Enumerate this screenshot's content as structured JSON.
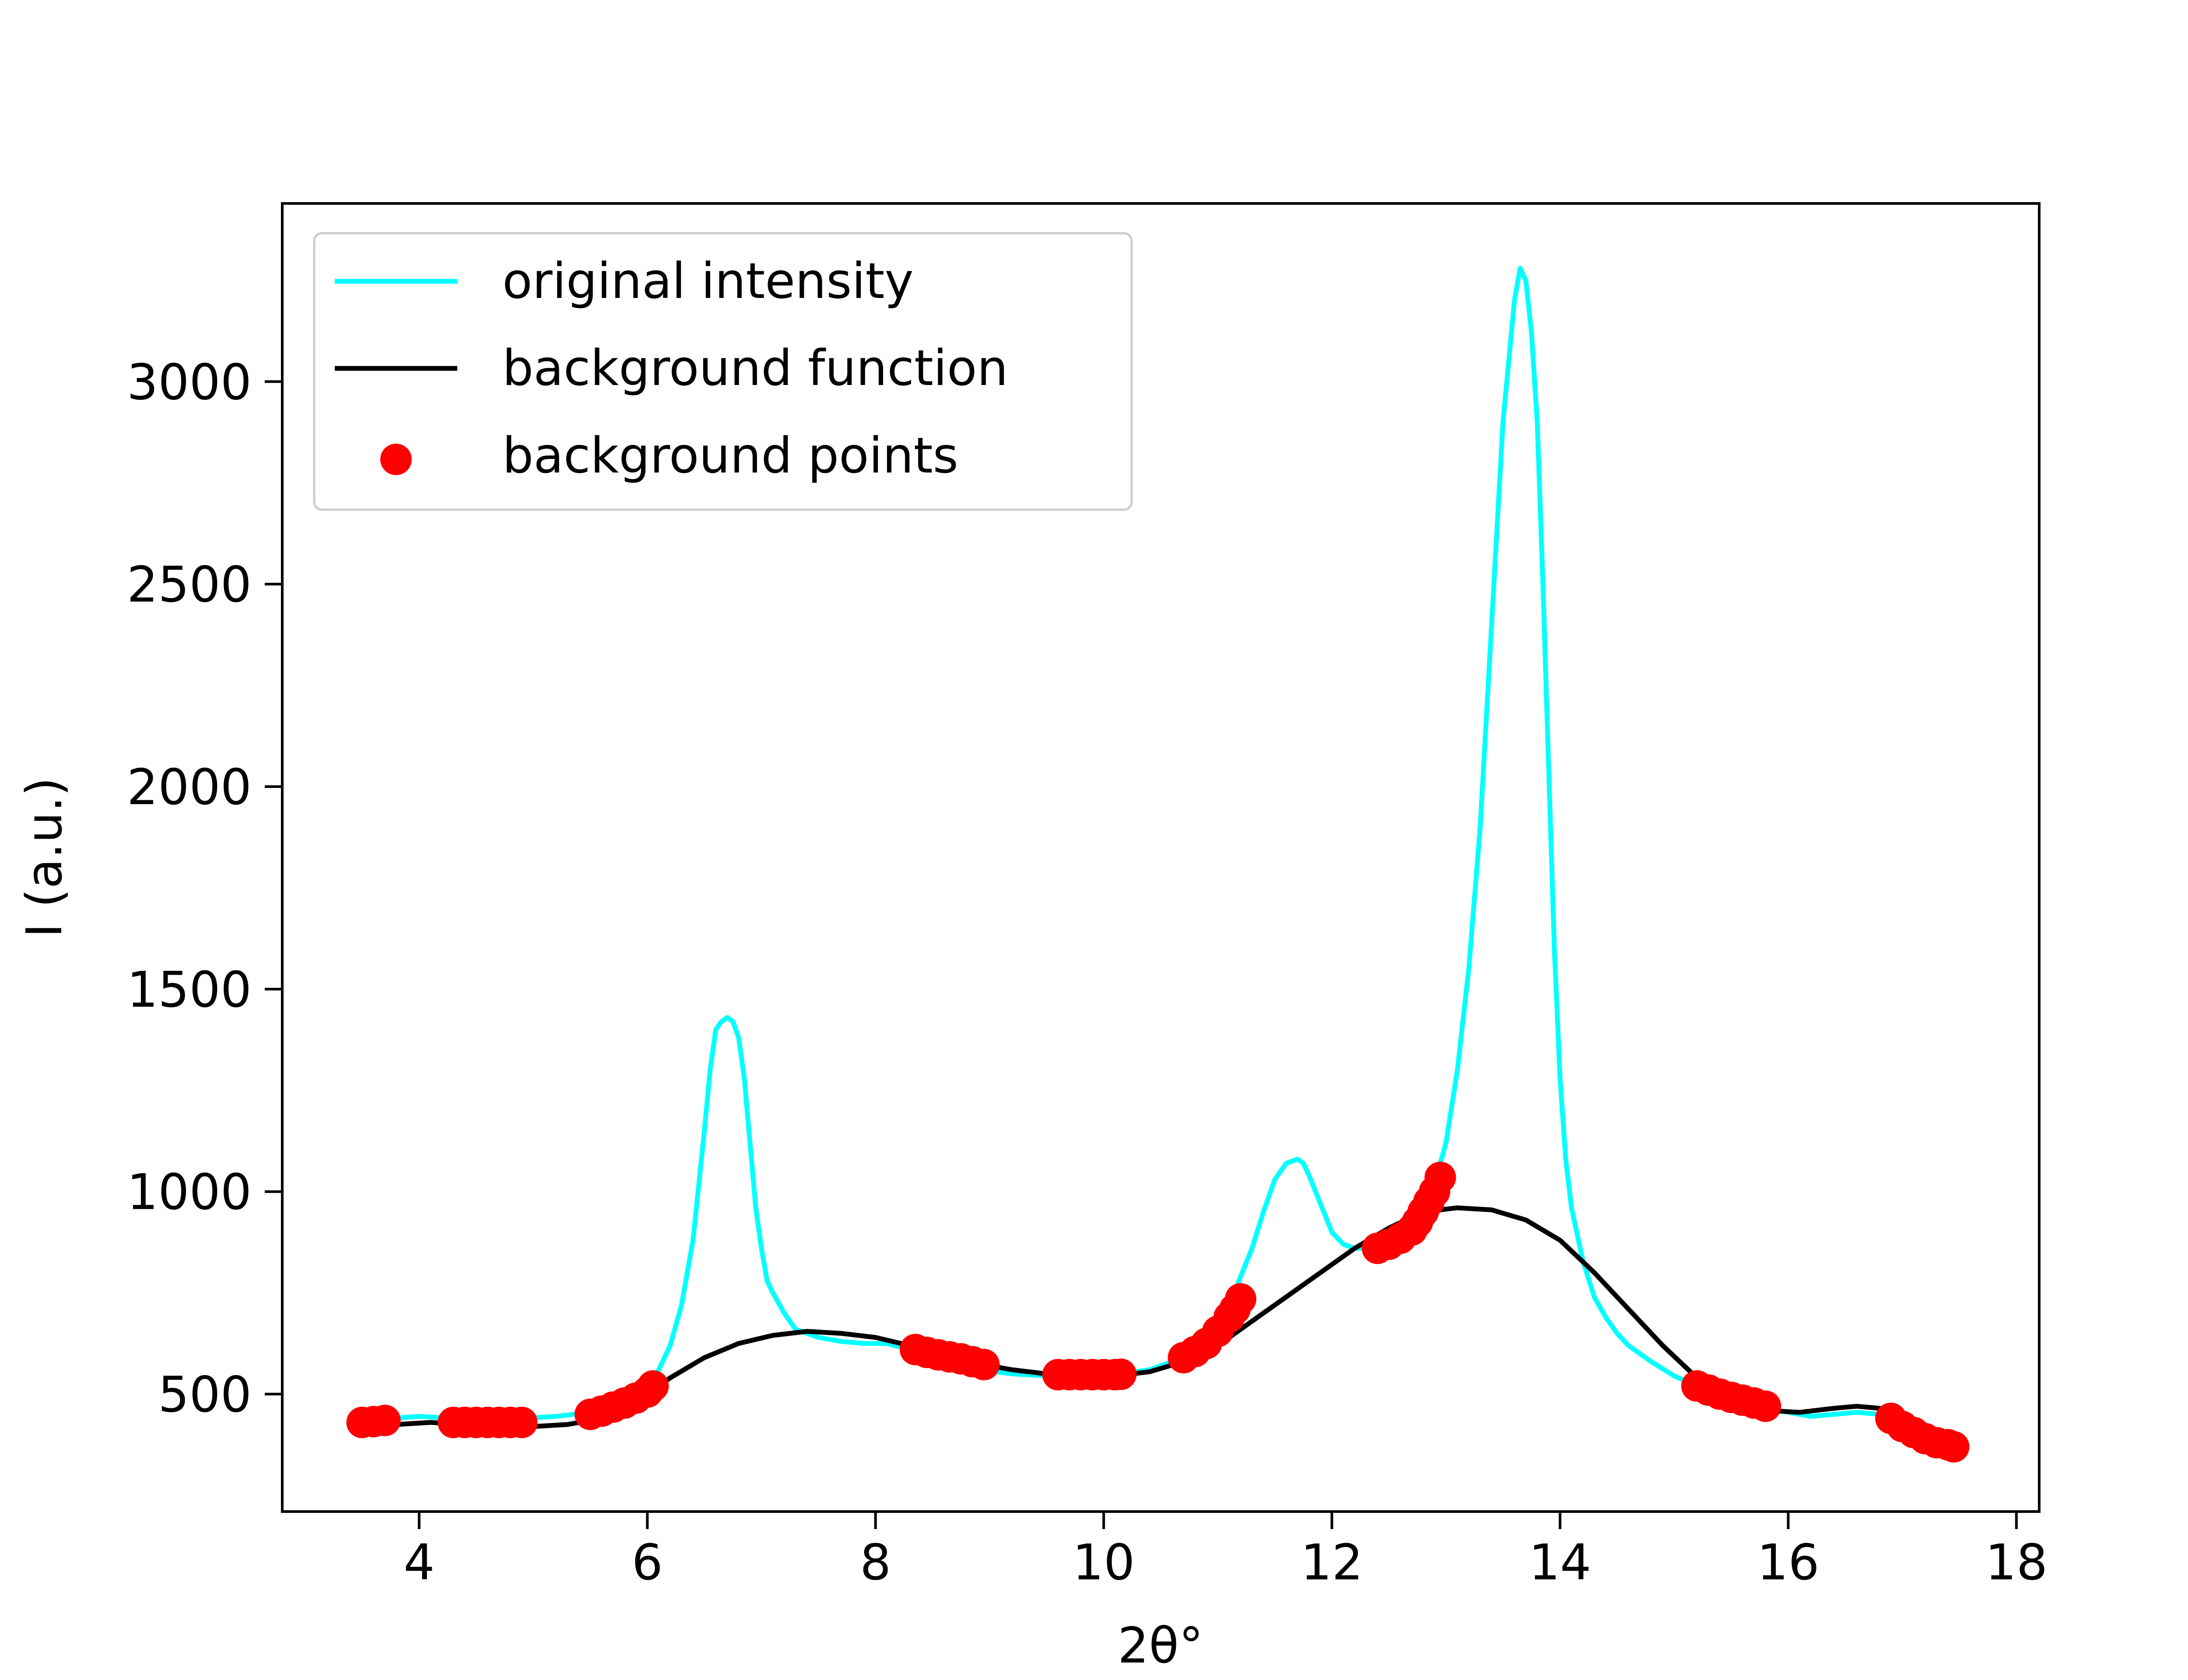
{
  "chart_data": {
    "type": "line",
    "title": "",
    "xlabel": "2θ°",
    "ylabel": "I (a.u.)",
    "xlim": [
      2.8,
      18.2
    ],
    "ylim": [
      210,
      3440
    ],
    "x_ticks": [
      4,
      6,
      8,
      10,
      12,
      14,
      16,
      18
    ],
    "y_ticks": [
      500,
      1000,
      1500,
      2000,
      2500,
      3000
    ],
    "x_tick_labels": [
      "4",
      "6",
      "8",
      "10",
      "12",
      "14",
      "16",
      "18"
    ],
    "y_tick_labels": [
      "500",
      "1000",
      "1500",
      "2000",
      "2500",
      "3000"
    ],
    "grid": false,
    "legend": {
      "position": "upper-left",
      "entries": [
        "original intensity",
        "background function",
        "background points"
      ]
    },
    "series": [
      {
        "name": "original intensity",
        "kind": "line",
        "color": "#00ffff",
        "x": [
          3.5,
          3.75,
          4.0,
          4.3,
          4.6,
          4.9,
          5.2,
          5.5,
          5.8,
          6.0,
          6.1,
          6.2,
          6.3,
          6.4,
          6.5,
          6.55,
          6.6,
          6.65,
          6.7,
          6.75,
          6.8,
          6.85,
          6.9,
          6.95,
          7.0,
          7.05,
          7.1,
          7.2,
          7.3,
          7.5,
          7.7,
          7.9,
          8.1,
          8.3,
          8.5,
          8.7,
          8.9,
          9.2,
          9.5,
          9.8,
          10.1,
          10.4,
          10.7,
          10.9,
          11.1,
          11.2,
          11.3,
          11.4,
          11.5,
          11.6,
          11.7,
          11.75,
          11.8,
          11.9,
          12.0,
          12.1,
          12.2,
          12.3,
          12.4,
          12.5,
          12.6,
          12.7,
          12.8,
          12.9,
          13.0,
          13.1,
          13.2,
          13.3,
          13.4,
          13.5,
          13.6,
          13.65,
          13.7,
          13.75,
          13.8,
          13.85,
          13.9,
          13.95,
          14.0,
          14.05,
          14.1,
          14.2,
          14.3,
          14.4,
          14.5,
          14.6,
          14.8,
          15.0,
          15.2,
          15.4,
          15.6,
          15.8,
          16.0,
          16.2,
          16.4,
          16.6,
          16.8,
          17.0,
          17.2,
          17.45
        ],
        "y": [
          430,
          440,
          445,
          440,
          435,
          440,
          445,
          455,
          490,
          520,
          560,
          620,
          720,
          880,
          1150,
          1300,
          1400,
          1420,
          1430,
          1420,
          1380,
          1280,
          1120,
          960,
          860,
          780,
          750,
          700,
          660,
          640,
          630,
          625,
          625,
          610,
          590,
          575,
          560,
          550,
          545,
          545,
          548,
          560,
          590,
          640,
          720,
          790,
          860,
          950,
          1030,
          1070,
          1080,
          1070,
          1040,
          970,
          900,
          870,
          860,
          860,
          865,
          880,
          900,
          930,
          970,
          1020,
          1120,
          1300,
          1550,
          1900,
          2400,
          2900,
          3200,
          3280,
          3250,
          3120,
          2900,
          2500,
          2050,
          1600,
          1280,
          1080,
          960,
          830,
          740,
          690,
          650,
          620,
          580,
          545,
          520,
          500,
          480,
          465,
          455,
          445,
          450,
          455,
          450,
          440,
          400,
          370
        ]
      },
      {
        "name": "background function",
        "kind": "line",
        "color": "#000000",
        "x": [
          3.5,
          3.8,
          4.1,
          4.4,
          4.7,
          5.0,
          5.3,
          5.6,
          5.9,
          6.2,
          6.5,
          6.8,
          7.1,
          7.4,
          7.7,
          8.0,
          8.3,
          8.6,
          8.9,
          9.2,
          9.5,
          9.8,
          10.1,
          10.4,
          10.7,
          11.0,
          11.3,
          11.6,
          11.9,
          12.2,
          12.5,
          12.8,
          13.1,
          13.4,
          13.7,
          14.0,
          14.3,
          14.6,
          14.9,
          15.2,
          15.5,
          15.8,
          16.1,
          16.4,
          16.6,
          16.8,
          17.0,
          17.2,
          17.45
        ],
        "y": [
          420,
          425,
          430,
          425,
          420,
          420,
          425,
          440,
          480,
          540,
          590,
          625,
          645,
          655,
          650,
          640,
          620,
          595,
          575,
          560,
          550,
          545,
          545,
          555,
          580,
          620,
          680,
          740,
          800,
          860,
          910,
          950,
          960,
          955,
          930,
          880,
          800,
          710,
          620,
          540,
          490,
          460,
          455,
          465,
          470,
          465,
          430,
          395,
          375
        ]
      },
      {
        "name": "background points",
        "kind": "scatter",
        "color": "#ff0000",
        "x": [
          3.5,
          3.6,
          3.7,
          4.3,
          4.4,
          4.5,
          4.6,
          4.7,
          4.8,
          4.9,
          5.5,
          5.6,
          5.7,
          5.8,
          5.9,
          6.0,
          6.05,
          8.35,
          8.45,
          8.55,
          8.65,
          8.75,
          8.85,
          8.95,
          9.6,
          9.7,
          9.8,
          9.9,
          10.0,
          10.1,
          10.15,
          10.7,
          10.8,
          10.9,
          11.0,
          11.1,
          11.15,
          11.2,
          12.4,
          12.5,
          12.6,
          12.7,
          12.75,
          12.8,
          12.85,
          12.9,
          12.95,
          15.2,
          15.3,
          15.4,
          15.5,
          15.6,
          15.7,
          15.8,
          16.9,
          17.0,
          17.1,
          17.2,
          17.3,
          17.4,
          17.45
        ],
        "y": [
          430,
          432,
          435,
          430,
          430,
          430,
          430,
          430,
          430,
          430,
          450,
          458,
          468,
          478,
          490,
          505,
          520,
          610,
          603,
          597,
          592,
          587,
          580,
          573,
          548,
          548,
          548,
          548,
          548,
          548,
          549,
          590,
          605,
          625,
          655,
          690,
          710,
          735,
          860,
          870,
          885,
          905,
          925,
          950,
          975,
          1000,
          1035,
          520,
          510,
          500,
          492,
          485,
          478,
          470,
          440,
          420,
          405,
          390,
          380,
          375,
          370
        ]
      }
    ]
  }
}
